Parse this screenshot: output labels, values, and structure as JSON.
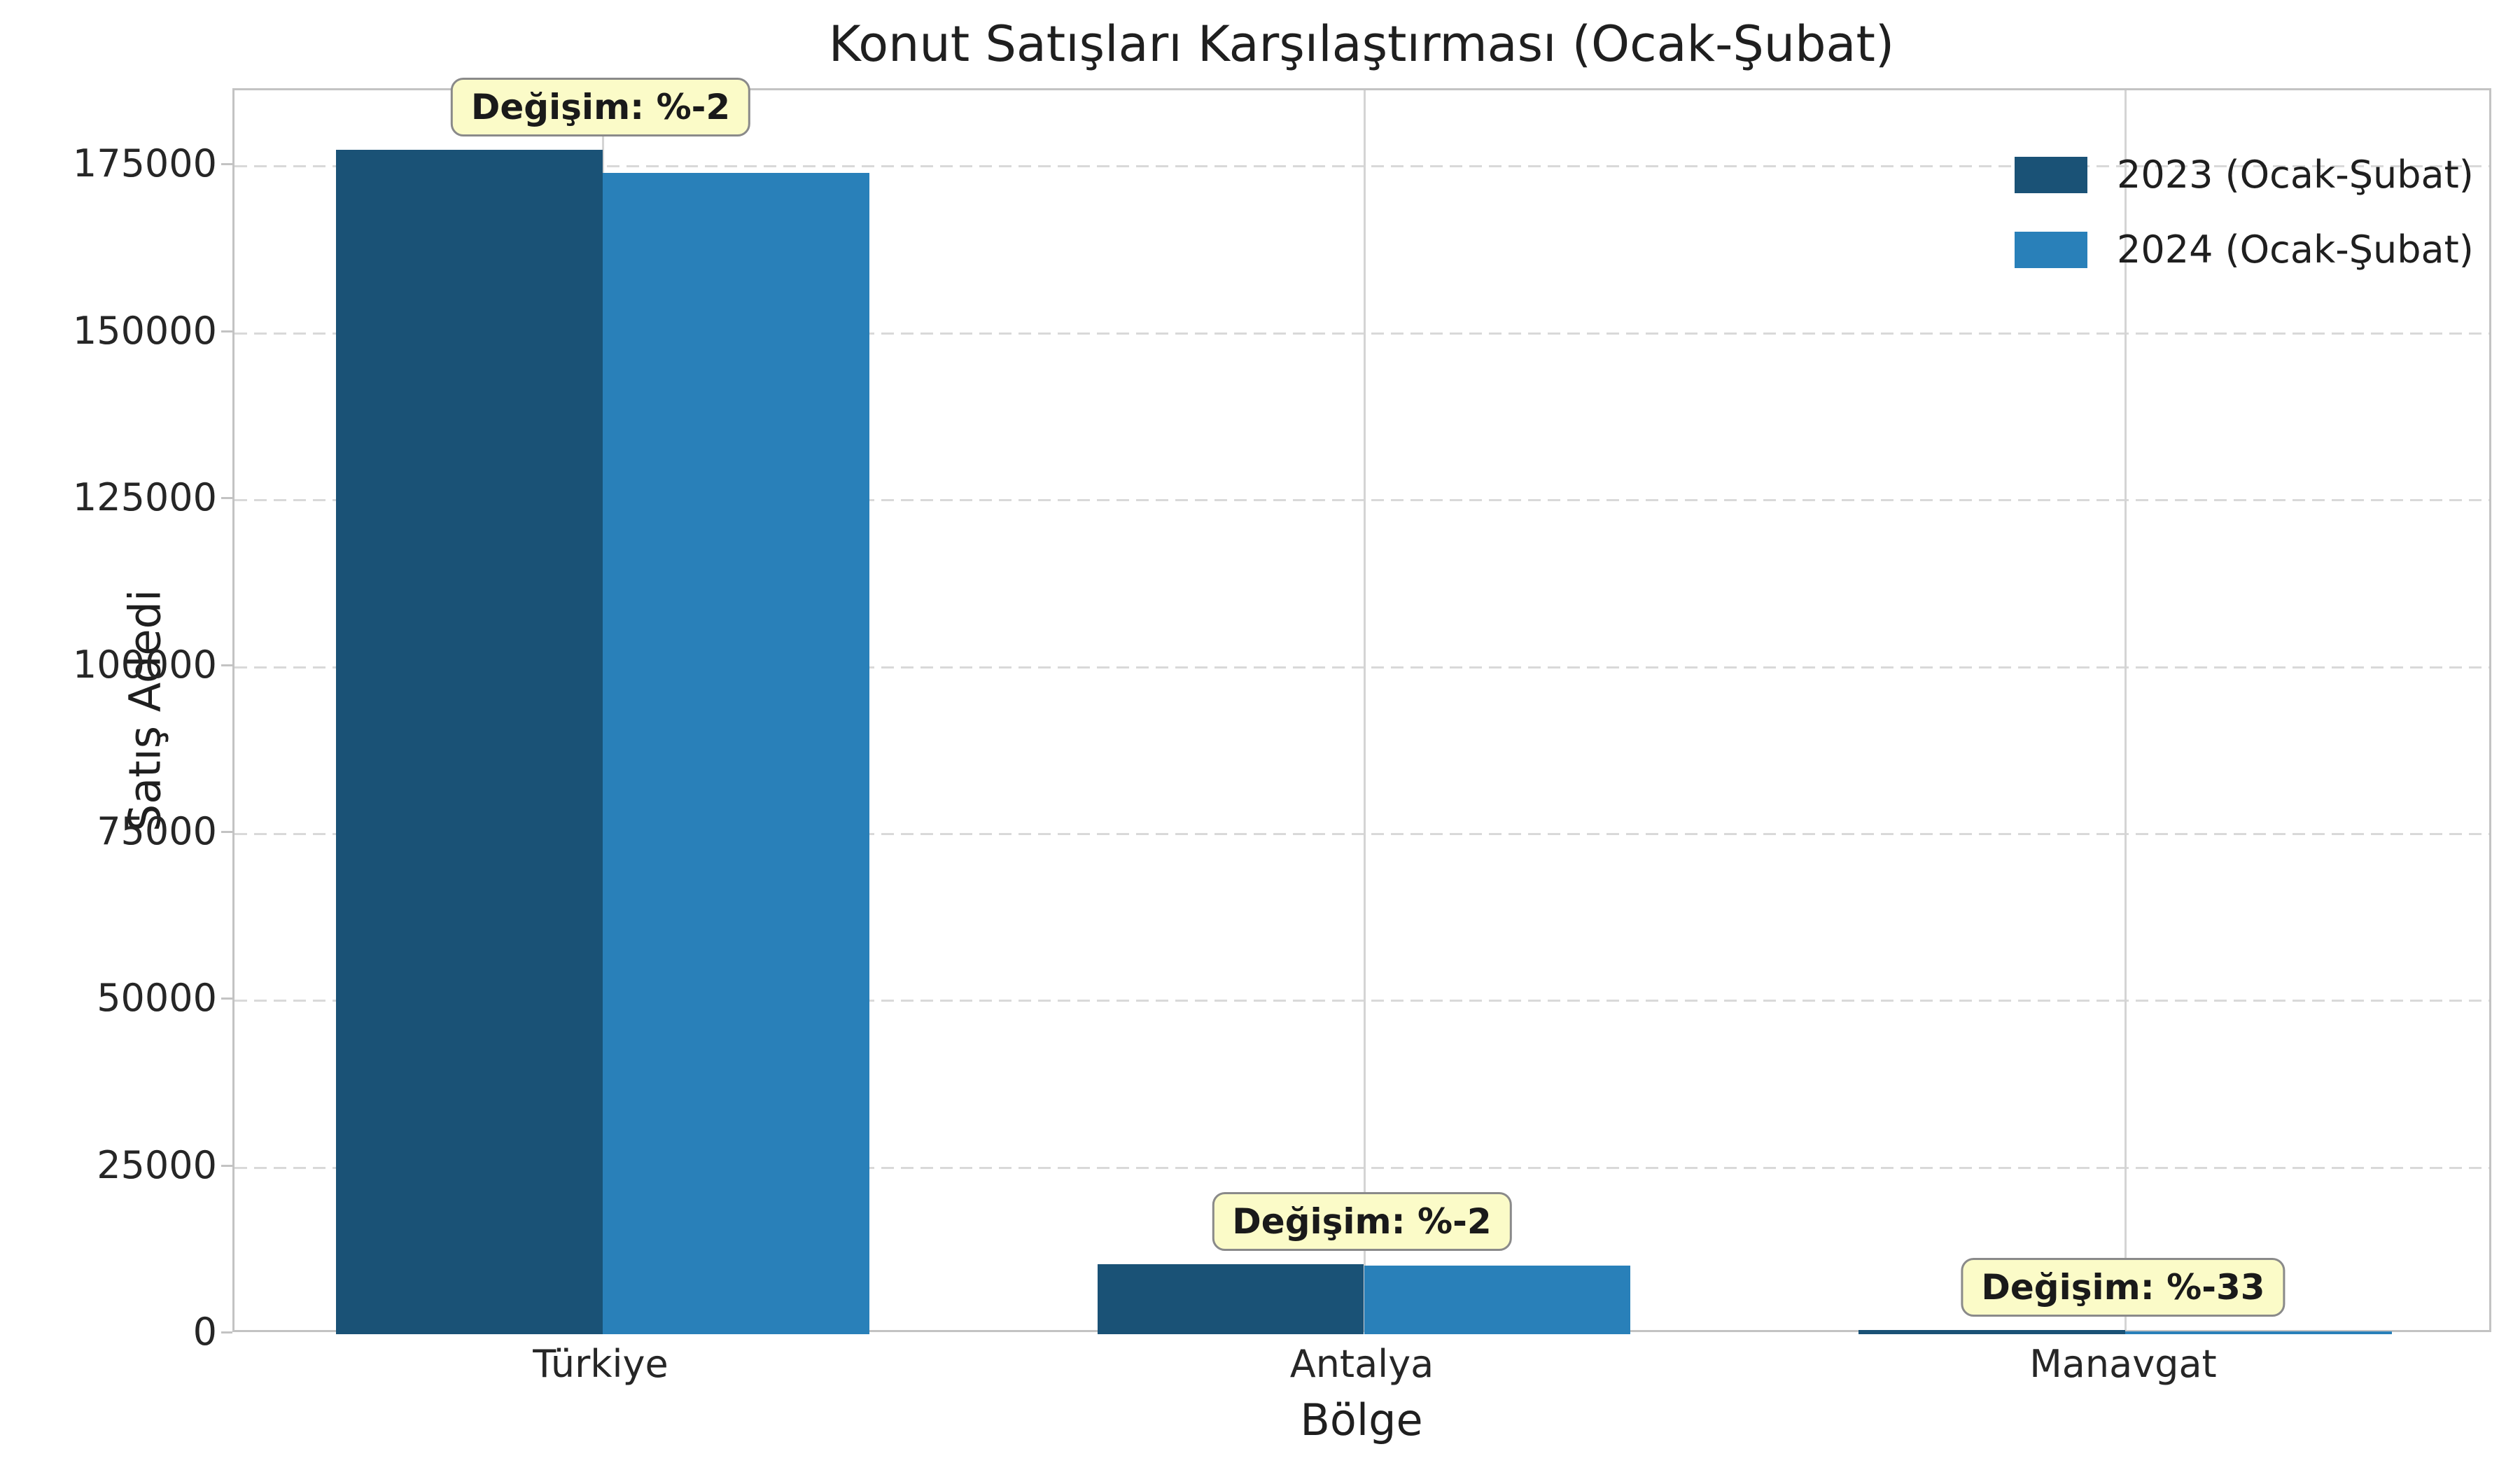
{
  "figure": {
    "title": "Konut Satışları Karşılaştırması (Ocak-Şubat)"
  },
  "chart_data": {
    "type": "bar",
    "title": "Konut Satışları Karşılaştırması (Ocak-Şubat)",
    "xlabel": "Bölge",
    "ylabel": "Satış Adedi",
    "categories": [
      "Türkiye",
      "Antalya",
      "Manavgat"
    ],
    "series": [
      {
        "name": "2023 (Ocak-Şubat)",
        "color": "#1a5276",
        "values": [
          177500,
          10500,
          600
        ]
      },
      {
        "name": "2024 (Ocak-Şubat)",
        "color": "#2980b9",
        "values": [
          174000,
          10300,
          400
        ]
      }
    ],
    "annotations": [
      {
        "category": "Türkiye",
        "label": "Değişim: %-2"
      },
      {
        "category": "Antalya",
        "label": "Değişim: %-2"
      },
      {
        "category": "Manavgat",
        "label": "Değişim: %-33"
      }
    ],
    "yticks": [
      0,
      25000,
      50000,
      75000,
      100000,
      125000,
      150000,
      175000
    ],
    "ylim": [
      0,
      186375
    ],
    "grid": {
      "horizontal": "dashed",
      "vertical": "solid"
    },
    "legend_position": "upper right"
  },
  "colors": {
    "bar_2023": "#1a5276",
    "bar_2024": "#2980b9",
    "grid": "#d4d4d4",
    "spine": "#c3c3c3",
    "annotation_bg": "#fbfbc8",
    "annotation_border": "#8a8a8a",
    "text": "#1f1f1f"
  }
}
